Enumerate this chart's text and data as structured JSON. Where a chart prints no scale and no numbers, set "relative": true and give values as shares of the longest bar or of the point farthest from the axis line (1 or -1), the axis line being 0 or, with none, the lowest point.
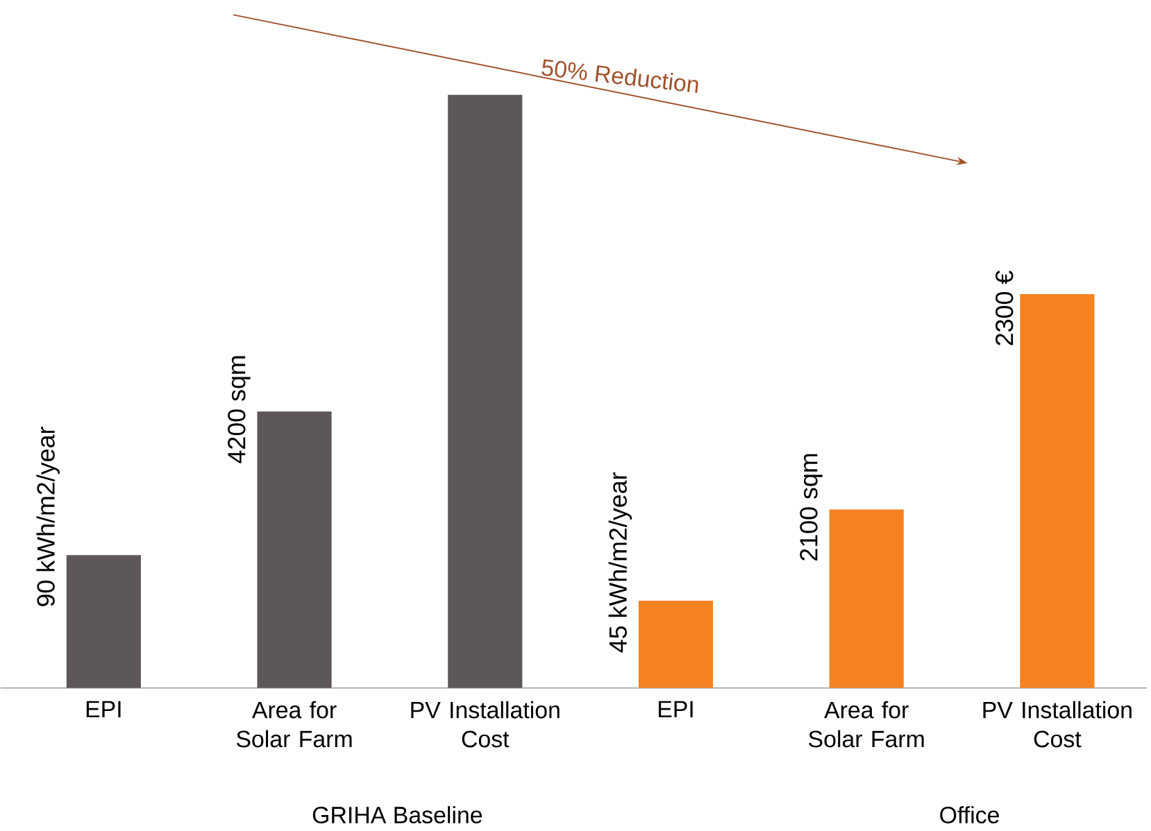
{
  "chart_data": {
    "type": "bar",
    "relative": true,
    "categories": [
      "EPI",
      "Area for Solar Farm",
      "PV Installation Cost",
      "EPI",
      "Area for Solar Farm",
      "PV Installation Cost"
    ],
    "values": [
      0.224,
      0.466,
      1,
      0.147,
      0.301,
      0.664
    ],
    "colors": [
      "#5e5758",
      "#5e5758",
      "#5e5758",
      "#f58220",
      "#f58220",
      "#f58220"
    ],
    "annotations": [
      "GRIHA Baseline",
      "Office",
      "50% Reduction",
      "90 kWh/m2/year",
      "4200 sqm",
      "45 kWh/m2/year",
      "2100 sqm",
      "2300 €"
    ]
  }
}
